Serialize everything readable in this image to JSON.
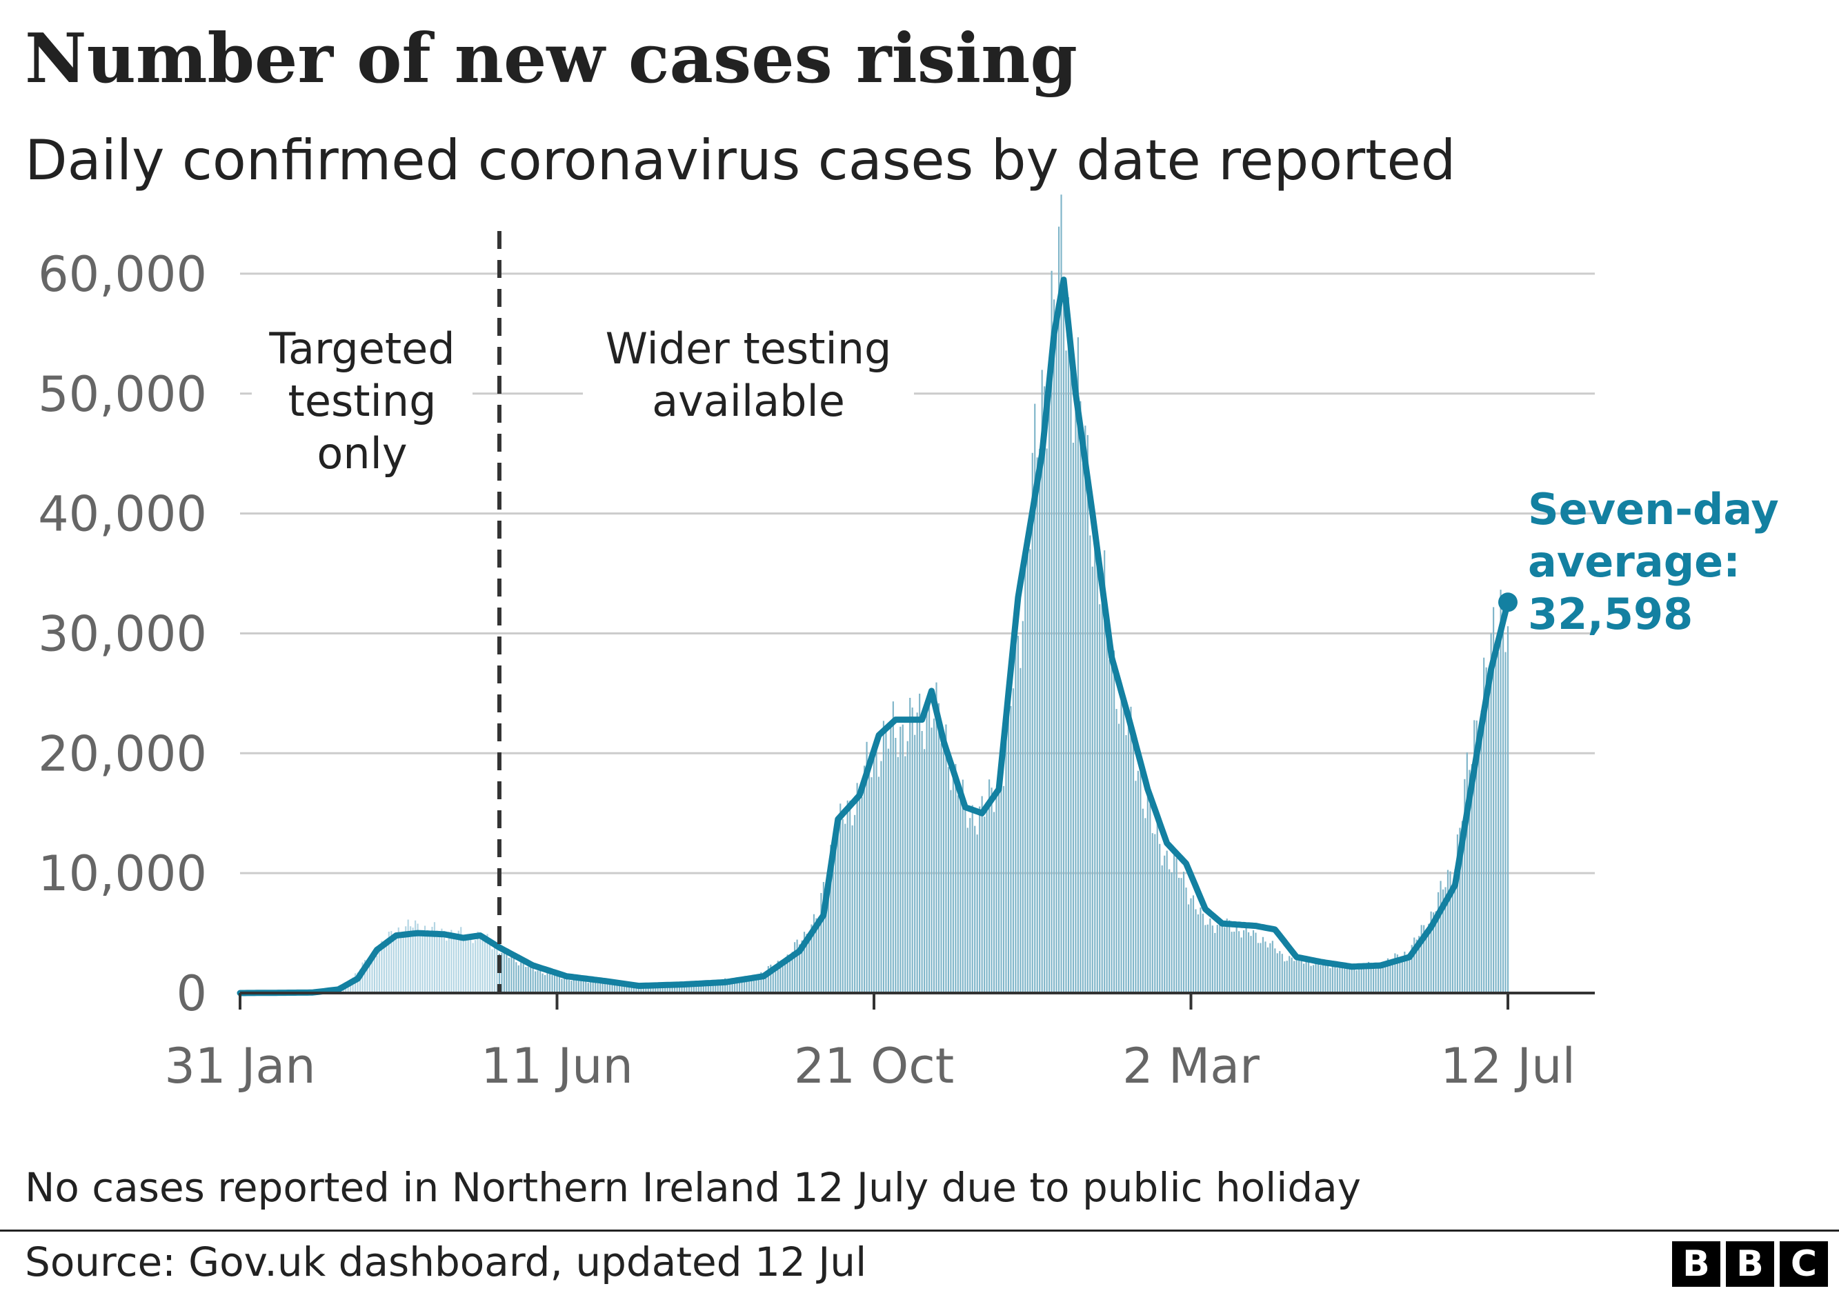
{
  "header": {
    "title": "Number of new cases rising",
    "subtitle": "Daily confirmed coronavirus cases by date reported"
  },
  "footer": {
    "note": "No cases reported in Northern Ireland 12 July due to public holiday",
    "source": "Source: Gov.uk dashboard, updated 12 Jul",
    "logo_letters": [
      "B",
      "B",
      "C"
    ]
  },
  "chart_data": {
    "type": "bar",
    "title": "Number of new cases rising",
    "subtitle": "Daily confirmed coronavirus cases by date reported",
    "xlabel": "",
    "ylabel": "",
    "x_range": [
      "2020-01-31",
      "2021-07-12"
    ],
    "ylim": [
      0,
      65000
    ],
    "y_ticks": [
      0,
      10000,
      20000,
      30000,
      40000,
      50000,
      60000
    ],
    "y_tick_labels": [
      "0",
      "10,000",
      "20,000",
      "30,000",
      "40,000",
      "50,000",
      "60,000"
    ],
    "x_tick_labels": [
      "31 Jan",
      "11 Jun",
      "21 Oct",
      "2 Mar",
      "12 Jul"
    ],
    "x_tick_dates": [
      "2020-01-31",
      "2020-06-11",
      "2020-10-21",
      "2021-03-02",
      "2021-07-12"
    ],
    "grid": "horizontal",
    "colors": {
      "bars": "#7FB5C9",
      "bars_early": "#B3D5E3",
      "line": "#1380A1",
      "grid": "#CCCCCC",
      "divider": "#333333"
    },
    "divider_date": "2020-05-18",
    "regions": [
      {
        "lines": [
          "Targeted",
          "testing",
          "only"
        ]
      },
      {
        "lines": [
          "Wider testing",
          "available"
        ]
      }
    ],
    "series": [
      {
        "name": "Daily cases",
        "style": "bars",
        "keypoints": [
          [
            "2020-01-31",
            0
          ],
          [
            "2020-03-01",
            50
          ],
          [
            "2020-03-15",
            600
          ],
          [
            "2020-03-25",
            3000
          ],
          [
            "2020-04-05",
            5200
          ],
          [
            "2020-04-12",
            5600
          ],
          [
            "2020-04-26",
            5000
          ],
          [
            "2020-05-05",
            4800
          ],
          [
            "2020-05-12",
            4600
          ],
          [
            "2020-05-20",
            3300
          ],
          [
            "2020-06-01",
            2000
          ],
          [
            "2020-06-15",
            1200
          ],
          [
            "2020-07-01",
            800
          ],
          [
            "2020-07-15",
            600
          ],
          [
            "2020-08-01",
            750
          ],
          [
            "2020-08-15",
            1000
          ],
          [
            "2020-09-01",
            1300
          ],
          [
            "2020-09-15",
            3000
          ],
          [
            "2020-09-28",
            6500
          ],
          [
            "2020-10-04",
            13000
          ],
          [
            "2020-10-10",
            15000
          ],
          [
            "2020-10-17",
            18000
          ],
          [
            "2020-10-24",
            21000
          ],
          [
            "2020-11-01",
            22000
          ],
          [
            "2020-11-08",
            22500
          ],
          [
            "2020-11-14",
            24000
          ],
          [
            "2020-11-20",
            21000
          ],
          [
            "2020-11-28",
            15000
          ],
          [
            "2020-12-06",
            15000
          ],
          [
            "2020-12-14",
            19000
          ],
          [
            "2020-12-22",
            33000
          ],
          [
            "2020-12-29",
            48000
          ],
          [
            "2021-01-04",
            57000
          ],
          [
            "2021-01-08",
            61000
          ],
          [
            "2021-01-12",
            52000
          ],
          [
            "2021-01-20",
            40000
          ],
          [
            "2021-01-28",
            28000
          ],
          [
            "2021-02-05",
            21000
          ],
          [
            "2021-02-15",
            13000
          ],
          [
            "2021-02-28",
            9000
          ],
          [
            "2021-03-07",
            6000
          ],
          [
            "2021-03-20",
            5500
          ],
          [
            "2021-04-01",
            4500
          ],
          [
            "2021-04-10",
            3000
          ],
          [
            "2021-04-25",
            2400
          ],
          [
            "2021-05-10",
            2200
          ],
          [
            "2021-05-20",
            2400
          ],
          [
            "2021-06-01",
            3500
          ],
          [
            "2021-06-10",
            6500
          ],
          [
            "2021-06-20",
            11000
          ],
          [
            "2021-06-28",
            22000
          ],
          [
            "2021-07-05",
            28000
          ],
          [
            "2021-07-09",
            33000
          ],
          [
            "2021-07-12",
            31000
          ]
        ]
      },
      {
        "name": "Seven-day average",
        "style": "line",
        "keypoints": [
          [
            "2020-01-31",
            0
          ],
          [
            "2020-03-01",
            40
          ],
          [
            "2020-03-12",
            300
          ],
          [
            "2020-03-20",
            1200
          ],
          [
            "2020-03-28",
            3600
          ],
          [
            "2020-04-05",
            4800
          ],
          [
            "2020-04-14",
            5000
          ],
          [
            "2020-04-25",
            4900
          ],
          [
            "2020-05-03",
            4600
          ],
          [
            "2020-05-10",
            4800
          ],
          [
            "2020-05-18",
            3800
          ],
          [
            "2020-06-01",
            2300
          ],
          [
            "2020-06-15",
            1400
          ],
          [
            "2020-07-01",
            1000
          ],
          [
            "2020-07-15",
            600
          ],
          [
            "2020-08-01",
            700
          ],
          [
            "2020-08-20",
            900
          ],
          [
            "2020-09-05",
            1400
          ],
          [
            "2020-09-20",
            3500
          ],
          [
            "2020-09-30",
            6500
          ],
          [
            "2020-10-06",
            14500
          ],
          [
            "2020-10-15",
            16500
          ],
          [
            "2020-10-23",
            21500
          ],
          [
            "2020-10-30",
            22800
          ],
          [
            "2020-11-10",
            22800
          ],
          [
            "2020-11-14",
            25200
          ],
          [
            "2020-11-19",
            21000
          ],
          [
            "2020-11-28",
            15500
          ],
          [
            "2020-12-05",
            15000
          ],
          [
            "2020-12-12",
            17000
          ],
          [
            "2020-12-20",
            33000
          ],
          [
            "2020-12-30",
            45000
          ],
          [
            "2021-01-04",
            55000
          ],
          [
            "2021-01-08",
            59500
          ],
          [
            "2021-01-13",
            50000
          ],
          [
            "2021-01-20",
            40000
          ],
          [
            "2021-01-28",
            28000
          ],
          [
            "2021-02-04",
            23000
          ],
          [
            "2021-02-12",
            17000
          ],
          [
            "2021-02-20",
            12500
          ],
          [
            "2021-02-28",
            10800
          ],
          [
            "2021-03-08",
            7000
          ],
          [
            "2021-03-15",
            5800
          ],
          [
            "2021-03-29",
            5600
          ],
          [
            "2021-04-06",
            5300
          ],
          [
            "2021-04-15",
            3000
          ],
          [
            "2021-04-25",
            2600
          ],
          [
            "2021-05-08",
            2200
          ],
          [
            "2021-05-20",
            2300
          ],
          [
            "2021-06-01",
            3000
          ],
          [
            "2021-06-10",
            5500
          ],
          [
            "2021-06-20",
            9000
          ],
          [
            "2021-06-27",
            17500
          ],
          [
            "2021-07-05",
            27000
          ],
          [
            "2021-07-12",
            32598
          ]
        ]
      }
    ],
    "annotation": {
      "lines": [
        "Seven-day",
        "average:",
        "32,598"
      ],
      "date": "2021-07-12",
      "value": 32598
    }
  }
}
